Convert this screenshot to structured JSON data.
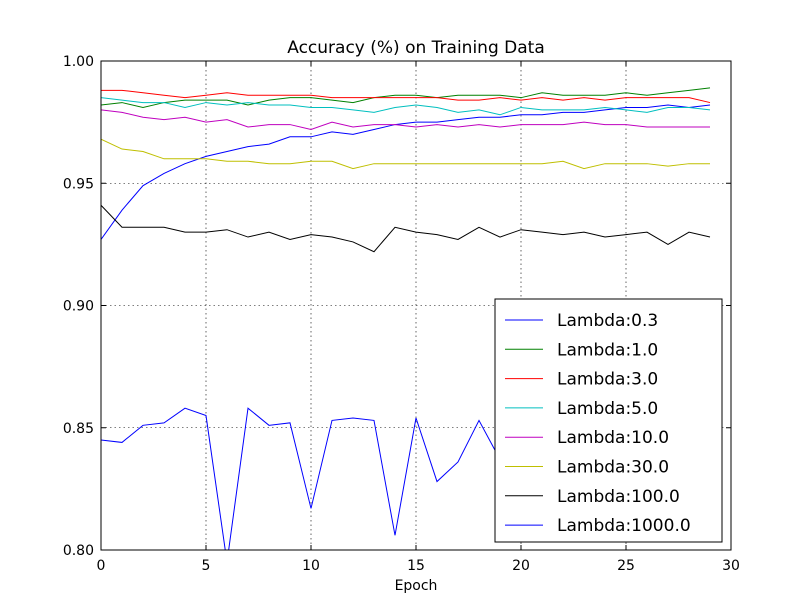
{
  "chart_data": {
    "type": "line",
    "title": "Accuracy (%) on Training Data",
    "xlabel": "Epoch",
    "ylabel": "",
    "xlim": [
      0,
      30
    ],
    "ylim": [
      0.8,
      1.0
    ],
    "x_ticks": [
      0,
      5,
      10,
      15,
      20,
      25,
      30
    ],
    "y_ticks": [
      0.8,
      0.85,
      0.9,
      0.95,
      1.0
    ],
    "x_tick_labels": [
      "0",
      "5",
      "10",
      "15",
      "20",
      "25",
      "30"
    ],
    "y_tick_labels": [
      "0.80",
      "0.85",
      "0.90",
      "0.95",
      "1.00"
    ],
    "grid": true,
    "legend_position": "lower-right",
    "x": [
      0,
      1,
      2,
      3,
      4,
      5,
      6,
      7,
      8,
      9,
      10,
      11,
      12,
      13,
      14,
      15,
      16,
      17,
      18,
      19,
      20,
      21,
      22,
      23,
      24,
      25,
      26,
      27,
      28,
      29
    ],
    "series": [
      {
        "name": "Lambda:0.3",
        "color": "#0000ff",
        "values": [
          0.927,
          0.939,
          0.949,
          0.954,
          0.958,
          0.961,
          0.963,
          0.965,
          0.966,
          0.969,
          0.969,
          0.971,
          0.97,
          0.972,
          0.974,
          0.975,
          0.975,
          0.976,
          0.977,
          0.977,
          0.978,
          0.978,
          0.979,
          0.979,
          0.98,
          0.981,
          0.981,
          0.982,
          0.981,
          0.982
        ]
      },
      {
        "name": "Lambda:1.0",
        "color": "#008000",
        "values": [
          0.982,
          0.983,
          0.981,
          0.983,
          0.984,
          0.984,
          0.984,
          0.982,
          0.984,
          0.985,
          0.985,
          0.984,
          0.983,
          0.985,
          0.986,
          0.986,
          0.985,
          0.986,
          0.986,
          0.986,
          0.985,
          0.987,
          0.986,
          0.986,
          0.986,
          0.987,
          0.986,
          0.987,
          0.988,
          0.989
        ]
      },
      {
        "name": "Lambda:3.0",
        "color": "#ff0000",
        "values": [
          0.988,
          0.988,
          0.987,
          0.986,
          0.985,
          0.986,
          0.987,
          0.986,
          0.986,
          0.986,
          0.986,
          0.985,
          0.985,
          0.985,
          0.985,
          0.985,
          0.985,
          0.984,
          0.984,
          0.985,
          0.984,
          0.985,
          0.984,
          0.985,
          0.984,
          0.985,
          0.985,
          0.985,
          0.985,
          0.983
        ]
      },
      {
        "name": "Lambda:5.0",
        "color": "#00bfbf",
        "values": [
          0.985,
          0.984,
          0.983,
          0.983,
          0.981,
          0.983,
          0.982,
          0.983,
          0.982,
          0.982,
          0.981,
          0.981,
          0.98,
          0.979,
          0.981,
          0.982,
          0.981,
          0.979,
          0.98,
          0.978,
          0.981,
          0.98,
          0.98,
          0.98,
          0.981,
          0.98,
          0.979,
          0.981,
          0.981,
          0.98
        ]
      },
      {
        "name": "Lambda:10.0",
        "color": "#bf00bf",
        "values": [
          0.98,
          0.979,
          0.977,
          0.976,
          0.977,
          0.975,
          0.976,
          0.973,
          0.974,
          0.974,
          0.972,
          0.975,
          0.973,
          0.974,
          0.974,
          0.973,
          0.974,
          0.973,
          0.974,
          0.973,
          0.974,
          0.974,
          0.974,
          0.975,
          0.974,
          0.974,
          0.973,
          0.973,
          0.973,
          0.973
        ]
      },
      {
        "name": "Lambda:30.0",
        "color": "#bfbf00",
        "values": [
          0.968,
          0.964,
          0.963,
          0.96,
          0.96,
          0.96,
          0.959,
          0.959,
          0.958,
          0.958,
          0.959,
          0.959,
          0.956,
          0.958,
          0.958,
          0.958,
          0.958,
          0.958,
          0.958,
          0.958,
          0.958,
          0.958,
          0.959,
          0.956,
          0.958,
          0.958,
          0.958,
          0.957,
          0.958,
          0.958
        ]
      },
      {
        "name": "Lambda:100.0",
        "color": "#000000",
        "values": [
          0.941,
          0.932,
          0.932,
          0.932,
          0.93,
          0.93,
          0.931,
          0.928,
          0.93,
          0.927,
          0.929,
          0.928,
          0.926,
          0.922,
          0.932,
          0.93,
          0.929,
          0.927,
          0.932,
          0.928,
          0.931,
          0.93,
          0.929,
          0.93,
          0.928,
          0.929,
          0.93,
          0.925,
          0.93,
          0.928
        ]
      },
      {
        "name": "Lambda:1000.0",
        "color": "#0000ff",
        "values": [
          0.845,
          0.844,
          0.851,
          0.852,
          0.858,
          0.855,
          0.795,
          0.858,
          0.851,
          0.852,
          0.817,
          0.853,
          0.854,
          0.853,
          0.806,
          0.854,
          0.828,
          0.836,
          0.853,
          0.837,
          0.845,
          0.845,
          0.845,
          0.845,
          0.845,
          0.845,
          0.845,
          0.845,
          0.845,
          0.845
        ]
      }
    ]
  }
}
